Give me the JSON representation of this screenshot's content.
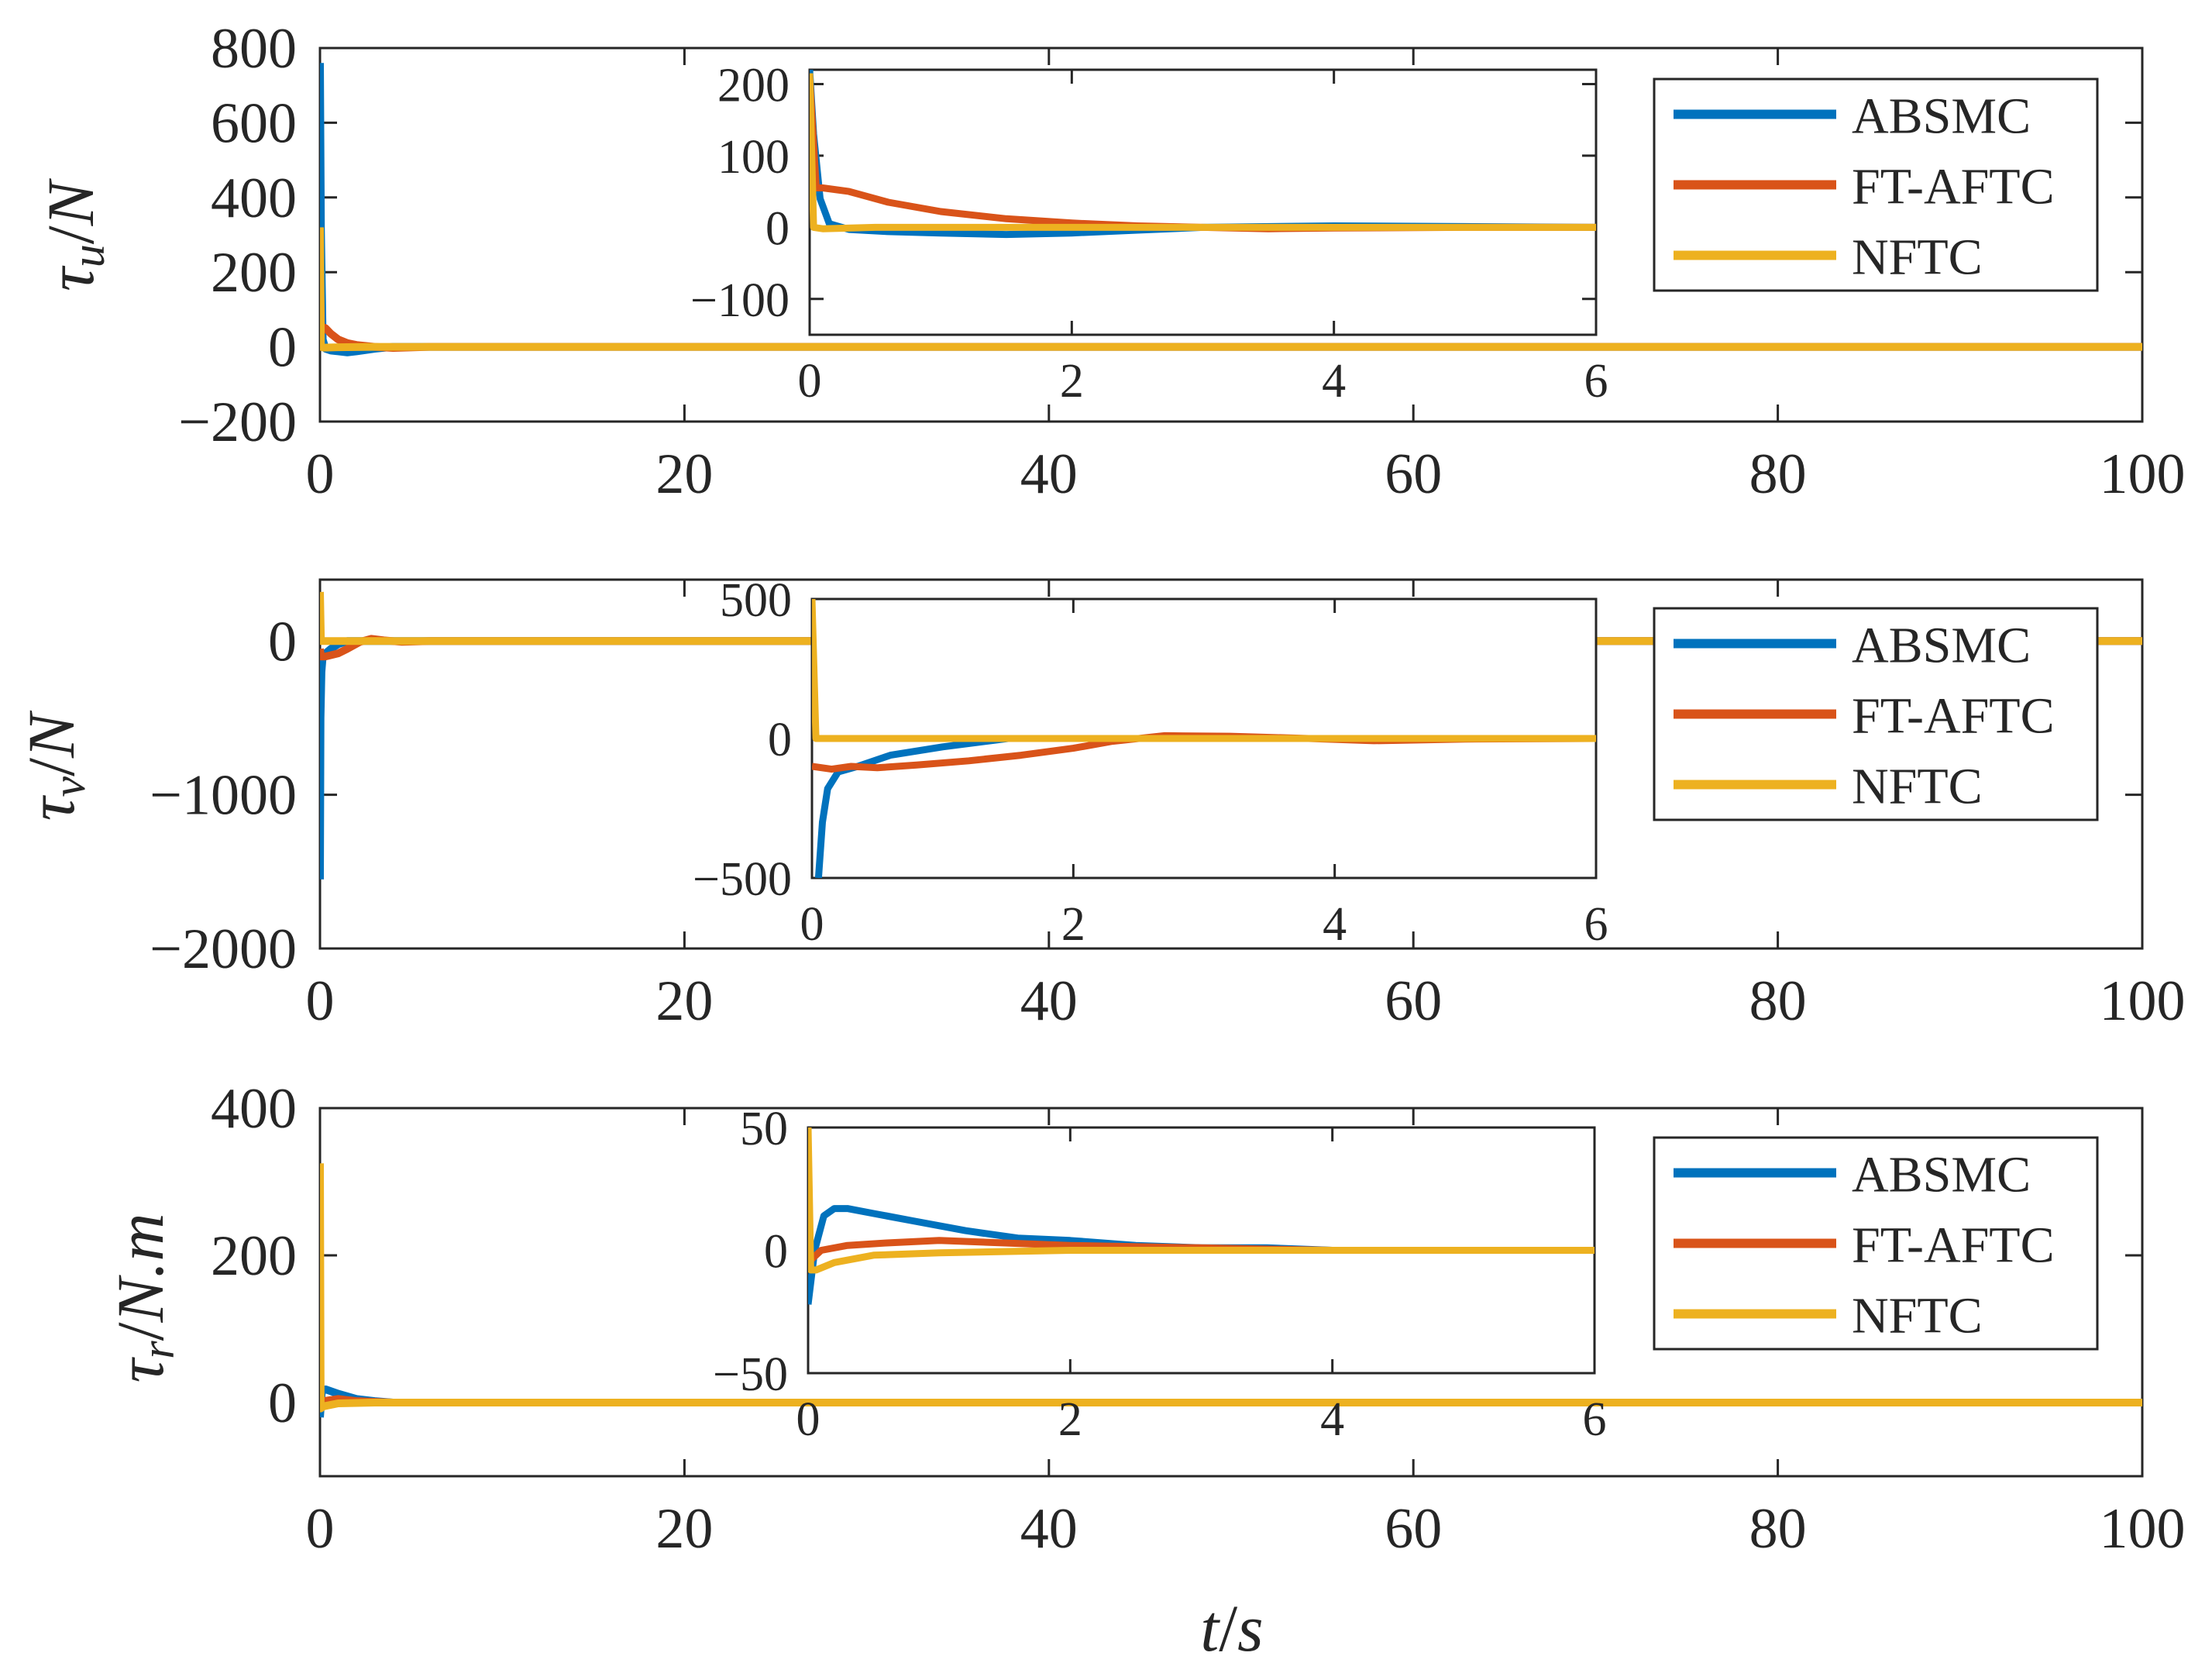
{
  "colors": {
    "ABSMC": "#0072BD",
    "FT-AFTC": "#D95319",
    "NFTC": "#EDB120",
    "axis": "#262626"
  },
  "xlabel": {
    "var": "t",
    "slash": "/",
    "unit": "s"
  },
  "chart_data": [
    {
      "type": "line",
      "ylabel": {
        "sym": "τ",
        "sub": "u",
        "slash": "/",
        "unit": "N"
      },
      "xlim": [
        0,
        100
      ],
      "ylim": [
        -200,
        800
      ],
      "xticks": [
        "0",
        "20",
        "40",
        "60",
        "80",
        "100"
      ],
      "yticks": [
        "800",
        "600",
        "400",
        "200",
        "0",
        "−200"
      ],
      "legend": [
        "ABSMC",
        "FT-AFTC",
        "NFTC"
      ],
      "legend_position": "top-right",
      "series": [
        {
          "name": "ABSMC",
          "x": [
            0,
            0.05,
            0.15,
            0.3,
            0.6,
            1,
            1.5,
            2,
            3,
            4,
            5,
            6,
            10,
            100
          ],
          "y": [
            760,
            320,
            20,
            -5,
            -10,
            -12,
            -15,
            -12,
            -5,
            0,
            0,
            0,
            0,
            0
          ]
        },
        {
          "name": "FT-AFTC",
          "x": [
            0,
            0.05,
            0.3,
            0.6,
            1,
            1.5,
            2,
            3,
            4,
            6,
            10,
            100
          ],
          "y": [
            200,
            55,
            50,
            35,
            20,
            10,
            5,
            0,
            -3,
            0,
            0,
            0
          ]
        },
        {
          "name": "NFTC",
          "x": [
            0,
            0.05,
            0.2,
            1,
            3,
            6,
            100
          ],
          "y": [
            320,
            0,
            -2,
            -1,
            0,
            0,
            0
          ]
        }
      ],
      "inset": {
        "xlim": [
          0,
          6
        ],
        "ylim": [
          -150,
          220
        ],
        "xticks": [
          "0",
          "2",
          "4",
          "6"
        ],
        "yticks": [
          "200",
          "100",
          "0",
          "−100"
        ],
        "series": [
          {
            "name": "ABSMC",
            "x": [
              0,
              0.03,
              0.08,
              0.15,
              0.3,
              0.6,
              1,
              1.5,
              2,
              2.5,
              3,
              4,
              5,
              6
            ],
            "y": [
              220,
              130,
              40,
              5,
              -3,
              -6,
              -8,
              -10,
              -8,
              -4,
              0,
              2,
              1,
              0
            ]
          },
          {
            "name": "FT-AFTC",
            "x": [
              0,
              0.05,
              0.1,
              0.3,
              0.6,
              1,
              1.5,
              2,
              2.5,
              3,
              3.5,
              4,
              5,
              6
            ],
            "y": [
              210,
              55,
              55,
              50,
              35,
              22,
              12,
              6,
              2,
              0,
              -2,
              -1,
              0,
              0
            ]
          },
          {
            "name": "NFTC",
            "x": [
              0,
              0.03,
              0.1,
              0.5,
              1,
              2,
              3,
              4,
              5,
              6
            ],
            "y": [
              215,
              0,
              -2,
              0,
              0,
              0,
              0,
              0,
              0,
              0
            ]
          }
        ]
      }
    },
    {
      "type": "line",
      "ylabel": {
        "sym": "τ",
        "sub": "v",
        "slash": "/",
        "unit": "N"
      },
      "xlim": [
        0,
        100
      ],
      "ylim": [
        -2000,
        400
      ],
      "xticks": [
        "0",
        "20",
        "40",
        "60",
        "80",
        "100"
      ],
      "yticks": [
        "0",
        "−1000",
        "−2000"
      ],
      "legend": [
        "ABSMC",
        "FT-AFTC",
        "NFTC"
      ],
      "legend_position": "top-right",
      "series": [
        {
          "name": "ABSMC",
          "x": [
            0,
            0.03,
            0.08,
            0.15,
            0.3,
            0.6,
            1,
            1.5,
            2,
            3,
            5,
            100
          ],
          "y": [
            -1550,
            -500,
            -200,
            -100,
            -80,
            -50,
            -20,
            0,
            0,
            0,
            0,
            0
          ]
        },
        {
          "name": "FT-AFTC",
          "x": [
            0,
            0.05,
            0.3,
            1,
            1.5,
            2.2,
            2.8,
            3.5,
            4.5,
            6,
            100
          ],
          "y": [
            -50,
            -100,
            -100,
            -80,
            -50,
            -5,
            15,
            5,
            -5,
            0,
            0
          ]
        },
        {
          "name": "NFTC",
          "x": [
            0,
            0.05,
            0.2,
            1,
            100
          ],
          "y": [
            320,
            0,
            0,
            0,
            0
          ]
        }
      ],
      "inset": {
        "xlim": [
          0,
          6
        ],
        "ylim": [
          -500,
          500
        ],
        "xticks": [
          "0",
          "2",
          "4",
          "6"
        ],
        "yticks": [
          "500",
          "0",
          "−500"
        ],
        "series": [
          {
            "name": "ABSMC",
            "x": [
              0.05,
              0.08,
              0.12,
              0.2,
              0.35,
              0.6,
              1,
              1.5,
              2,
              3,
              4,
              5,
              6
            ],
            "y": [
              -500,
              -300,
              -180,
              -120,
              -100,
              -60,
              -30,
              0,
              0,
              0,
              0,
              0,
              0
            ]
          },
          {
            "name": "FT-AFTC",
            "x": [
              0,
              0.15,
              0.3,
              0.5,
              0.8,
              1.2,
              1.6,
              2,
              2.3,
              2.7,
              3.2,
              3.8,
              4.3,
              5,
              6
            ],
            "y": [
              -100,
              -110,
              -100,
              -105,
              -95,
              -80,
              -60,
              -35,
              -10,
              10,
              8,
              0,
              -8,
              -2,
              0
            ]
          },
          {
            "name": "NFTC",
            "x": [
              0,
              0.03,
              0.1,
              1,
              2,
              3,
              4,
              5,
              6
            ],
            "y": [
              500,
              0,
              0,
              0,
              0,
              0,
              0,
              0,
              0
            ]
          }
        ]
      }
    },
    {
      "type": "line",
      "ylabel": {
        "sym": "τ",
        "sub": "r",
        "slash": "/",
        "unit": "N.m"
      },
      "xlim": [
        0,
        100
      ],
      "ylim": [
        -100,
        400
      ],
      "xticks": [
        "0",
        "20",
        "40",
        "60",
        "80",
        "100"
      ],
      "yticks": [
        "400",
        "200",
        "0"
      ],
      "legend": [
        "ABSMC",
        "FT-AFTC",
        "NFTC"
      ],
      "legend_position": "top-right",
      "series": [
        {
          "name": "ABSMC",
          "x": [
            0,
            0.1,
            0.3,
            1,
            2,
            3,
            4,
            5,
            6,
            100
          ],
          "y": [
            -20,
            15,
            18,
            12,
            5,
            2,
            0,
            0,
            0,
            0
          ]
        },
        {
          "name": "FT-AFTC",
          "x": [
            0,
            0.2,
            1,
            2,
            4,
            100
          ],
          "y": [
            -5,
            2,
            5,
            2,
            0,
            0
          ]
        },
        {
          "name": "NFTC",
          "x": [
            0,
            0.04,
            0.2,
            1,
            3,
            100
          ],
          "y": [
            325,
            -8,
            -5,
            -1,
            0,
            0
          ]
        }
      ],
      "inset": {
        "xlim": [
          0,
          6
        ],
        "ylim": [
          -50,
          50
        ],
        "xticks": [
          "0",
          "2",
          "4",
          "6"
        ],
        "yticks": [
          "50",
          "0",
          "−50"
        ],
        "series": [
          {
            "name": "ABSMC",
            "x": [
              0,
              0.05,
              0.12,
              0.2,
              0.3,
              0.5,
              0.8,
              1.2,
              1.6,
              2,
              2.5,
              3,
              3.5,
              4,
              5,
              6
            ],
            "y": [
              -22,
              0,
              14,
              17,
              17,
              15,
              12,
              8,
              5,
              4,
              2,
              1,
              1,
              0,
              0,
              0
            ]
          },
          {
            "name": "FT-AFTC",
            "x": [
              0,
              0.1,
              0.3,
              0.6,
              1,
              1.5,
              2,
              3,
              4,
              5,
              6
            ],
            "y": [
              -5,
              0,
              2,
              3,
              4,
              3,
              2,
              1,
              0,
              0,
              0
            ]
          },
          {
            "name": "NFTC",
            "x": [
              0,
              0.02,
              0.06,
              0.2,
              0.5,
              1,
              2,
              3,
              4,
              5,
              6
            ],
            "y": [
              50,
              -8,
              -8,
              -5,
              -2,
              -1,
              0,
              0,
              0,
              0,
              0
            ]
          }
        ]
      }
    }
  ]
}
